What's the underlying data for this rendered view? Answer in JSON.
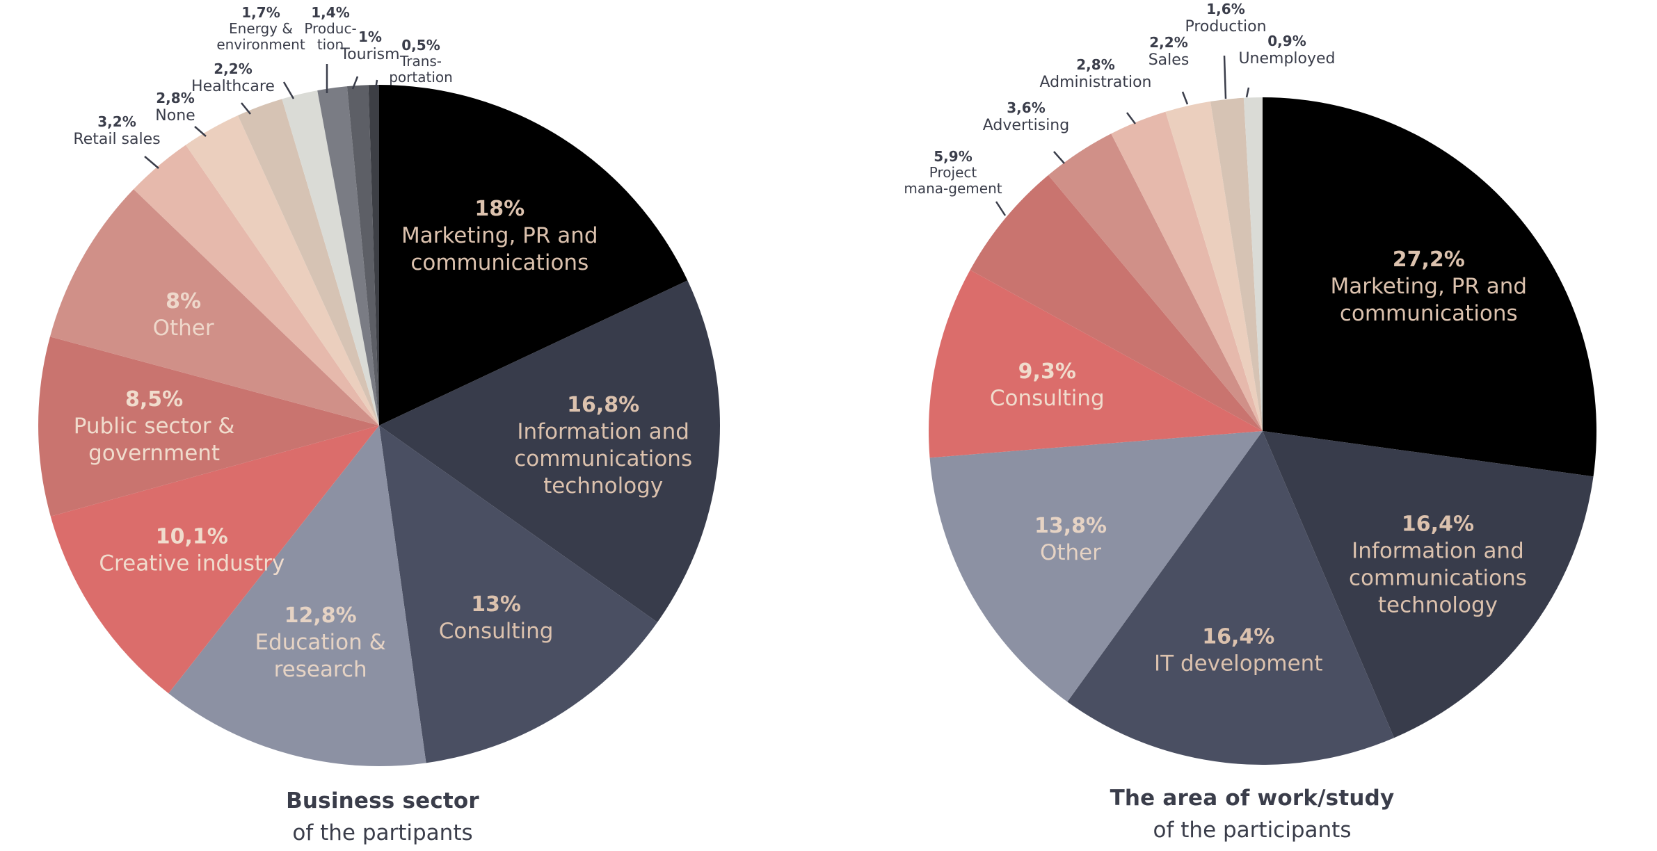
{
  "chart_data": [
    {
      "type": "pie",
      "title": "Business sector",
      "subtitle": "of the partipants",
      "start": "12 o'clock, clockwise",
      "slices": [
        {
          "label": "Marketing, PR and communications",
          "value": 18,
          "value_label": "18%",
          "color": "#000000",
          "label_color": "#dcc2ae",
          "placement": "inside"
        },
        {
          "label": "Information and communications technology",
          "value": 16.8,
          "value_label": "16,8%",
          "color": "#383c4b",
          "label_color": "#dcc2ae",
          "placement": "inside"
        },
        {
          "label": "Consulting",
          "value": 13,
          "value_label": "13%",
          "color": "#4a4f62",
          "label_color": "#dcc2ae",
          "placement": "inside"
        },
        {
          "label": "Education & research",
          "value": 12.8,
          "value_label": "12,8%",
          "color": "#8c91a3",
          "label_color": "#e6d3c4",
          "placement": "inside"
        },
        {
          "label": "Creative industry",
          "value": 10.1,
          "value_label": "10,1%",
          "color": "#db6d6b",
          "label_color": "#f0dccd",
          "placement": "inside"
        },
        {
          "label": "Public sector & government",
          "value": 8.5,
          "value_label": "8,5%",
          "color": "#c9746f",
          "label_color": "#f0dccd",
          "placement": "inside"
        },
        {
          "label": "Other",
          "value": 8,
          "value_label": "8%",
          "color": "#d09088",
          "label_color": "#eed8cb",
          "placement": "inside"
        },
        {
          "label": "Retail sales",
          "value": 3.2,
          "value_label": "3,2%",
          "color": "#e6b9ac",
          "label_color": "#3a3d4a",
          "placement": "outside"
        },
        {
          "label": "None",
          "value": 2.8,
          "value_label": "2,8%",
          "color": "#ebcfbe",
          "label_color": "#3a3d4a",
          "placement": "outside"
        },
        {
          "label": "Healthcare",
          "value": 2.2,
          "value_label": "2,2%",
          "color": "#d6c3b4",
          "label_color": "#3a3d4a",
          "placement": "outside"
        },
        {
          "label": "Energy & environment",
          "value": 1.7,
          "value_label": "1,7%",
          "color": "#dadbd6",
          "label_color": "#3a3d4a",
          "placement": "outside"
        },
        {
          "label": "Produc-tion",
          "value": 1.4,
          "value_label": "1,4%",
          "color": "#7a7c84",
          "label_color": "#3a3d4a",
          "placement": "outside"
        },
        {
          "label": "Tourism",
          "value": 1,
          "value_label": "1%",
          "color": "#5d5f66",
          "label_color": "#3a3d4a",
          "placement": "outside"
        },
        {
          "label": "Trans-portation",
          "value": 0.5,
          "value_label": "0,5%",
          "color": "#3d3f45",
          "label_color": "#3a3d4a",
          "placement": "outside"
        }
      ]
    },
    {
      "type": "pie",
      "title": "The area of work/study",
      "subtitle": "of the participants",
      "start": "12 o'clock, clockwise",
      "slices": [
        {
          "label": "Marketing, PR and communications",
          "value": 27.2,
          "value_label": "27,2%",
          "color": "#000000",
          "label_color": "#dcc2ae",
          "placement": "inside"
        },
        {
          "label": "Information and communications technology",
          "value": 16.4,
          "value_label": "16,4%",
          "color": "#383c4b",
          "label_color": "#dcc2ae",
          "placement": "inside"
        },
        {
          "label": "IT development",
          "value": 16.4,
          "value_label": "16,4%",
          "color": "#4a4f62",
          "label_color": "#dcc2ae",
          "placement": "inside"
        },
        {
          "label": "Other",
          "value": 13.8,
          "value_label": "13,8%",
          "color": "#8c91a3",
          "label_color": "#e6d3c4",
          "placement": "inside"
        },
        {
          "label": "Consulting",
          "value": 9.3,
          "value_label": "9,3%",
          "color": "#db6d6b",
          "label_color": "#f0dccd",
          "placement": "inside"
        },
        {
          "label": "Project mana-gement",
          "value": 5.9,
          "value_label": "5,9%",
          "color": "#c9746f",
          "label_color": "#3a3d4a",
          "placement": "outside"
        },
        {
          "label": "Advertising",
          "value": 3.6,
          "value_label": "3,6%",
          "color": "#d09088",
          "label_color": "#3a3d4a",
          "placement": "outside"
        },
        {
          "label": "Administration",
          "value": 2.8,
          "value_label": "2,8%",
          "color": "#e6b9ac",
          "label_color": "#3a3d4a",
          "placement": "outside"
        },
        {
          "label": "Sales",
          "value": 2.2,
          "value_label": "2,2%",
          "color": "#ebcfbe",
          "label_color": "#3a3d4a",
          "placement": "outside"
        },
        {
          "label": "Production",
          "value": 1.6,
          "value_label": "1,6%",
          "color": "#d6c3b4",
          "label_color": "#3a3d4a",
          "placement": "outside"
        },
        {
          "label": "Unemployed",
          "value": 0.9,
          "value_label": "0,9%",
          "color": "#dadbd6",
          "label_color": "#3a3d4a",
          "placement": "outside"
        }
      ]
    }
  ]
}
